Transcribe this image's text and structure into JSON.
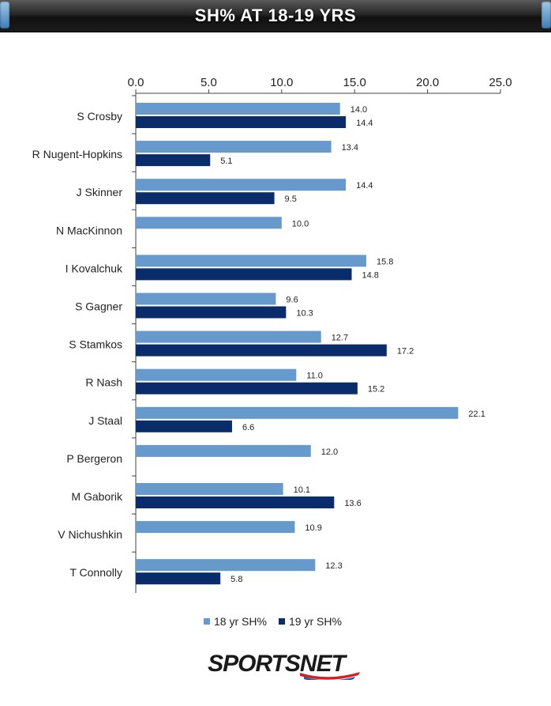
{
  "title": "SH% AT 18-19 YRS",
  "logo_text": "SPORTSNET",
  "chart_data": {
    "type": "bar",
    "orientation": "horizontal",
    "categories": [
      "S Crosby",
      "R Nugent-Hopkins",
      "J Skinner",
      "N MacKinnon",
      "I Kovalchuk",
      "S Gagner",
      "S Stamkos",
      "R Nash",
      "J Staal",
      "P Bergeron",
      "M Gaborik",
      "V Nichushkin",
      "T Connolly"
    ],
    "series": [
      {
        "name": "18 yr SH%",
        "color": "#6699cc",
        "values": [
          14.0,
          13.4,
          14.4,
          10.0,
          15.8,
          9.6,
          12.7,
          11.0,
          22.1,
          12.0,
          10.1,
          10.9,
          12.3
        ]
      },
      {
        "name": "19 yr SH%",
        "color": "#0b2c6b",
        "values": [
          14.4,
          5.1,
          9.5,
          null,
          14.8,
          10.3,
          17.2,
          15.2,
          6.6,
          null,
          13.6,
          null,
          5.8
        ]
      }
    ],
    "xlim": [
      0,
      25
    ],
    "xticks": [
      0.0,
      5.0,
      10.0,
      15.0,
      20.0,
      25.0
    ],
    "axis_position": "top",
    "grid": false,
    "legend": "bottom"
  }
}
